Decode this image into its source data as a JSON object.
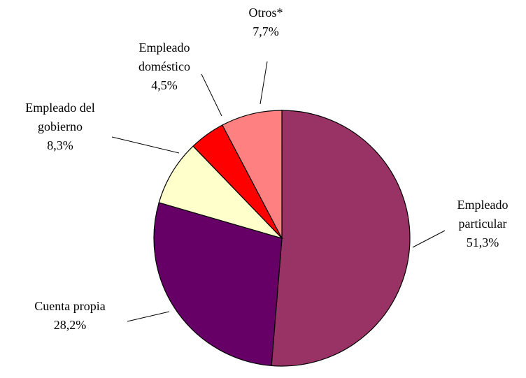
{
  "chart_data": {
    "type": "pie",
    "categories": [
      "Empleado particular",
      "Cuenta propia",
      "Empleado del gobierno",
      "Empleado doméstico",
      "Otros*"
    ],
    "values": [
      51.3,
      28.2,
      8.3,
      4.5,
      7.7
    ],
    "value_labels": [
      "51,3%",
      "28,2%",
      "8,3%",
      "4,5%",
      "7,7%"
    ],
    "colors": [
      "#993366",
      "#660066",
      "#ffffcc",
      "#ff0000",
      "#ff8080"
    ]
  }
}
